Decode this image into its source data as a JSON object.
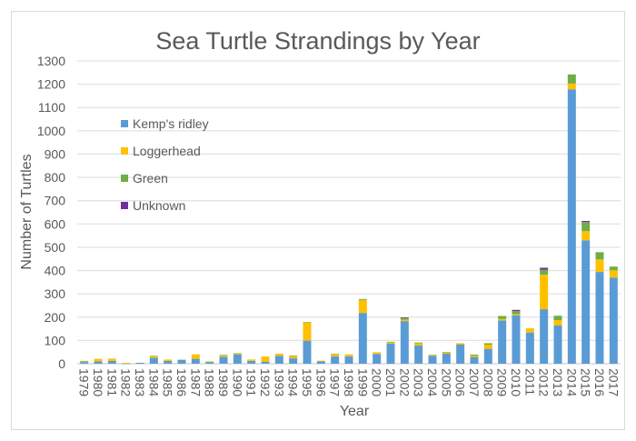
{
  "chart_data": {
    "type": "bar",
    "stacked": true,
    "title": "Sea Turtle Strandings by Year",
    "xlabel": "Year",
    "ylabel": "Number of Turtles",
    "ylim": [
      0,
      1300
    ],
    "yticks": [
      0,
      100,
      200,
      300,
      400,
      500,
      600,
      700,
      800,
      900,
      1000,
      1100,
      1200,
      1300
    ],
    "grid": true,
    "legend_position": "upper-left inside",
    "categories": [
      "1979",
      "1980",
      "1981",
      "1982",
      "1983",
      "1984",
      "1985",
      "1986",
      "1987",
      "1988",
      "1989",
      "1990",
      "1991",
      "1992",
      "1993",
      "1994",
      "1995",
      "1996",
      "1997",
      "1998",
      "1999",
      "2000",
      "2001",
      "2002",
      "2003",
      "2004",
      "2005",
      "2006",
      "2007",
      "2008",
      "2009",
      "2010",
      "2011",
      "2012",
      "2013",
      "2014",
      "2015",
      "2016",
      "2017"
    ],
    "series": [
      {
        "name": "Kemp's ridley",
        "color": "#5B9BD5",
        "values": [
          7,
          10,
          12,
          1,
          4,
          25,
          12,
          16,
          21,
          6,
          30,
          39,
          12,
          9,
          34,
          23,
          99,
          10,
          31,
          31,
          218,
          42,
          87,
          183,
          78,
          34,
          43,
          82,
          29,
          64,
          186,
          208,
          134,
          234,
          164,
          1178,
          530,
          394,
          370
        ]
      },
      {
        "name": "Loggerhead",
        "color": "#FFC000",
        "values": [
          4,
          11,
          10,
          3,
          0,
          7,
          6,
          0,
          19,
          2,
          6,
          4,
          6,
          22,
          9,
          10,
          78,
          3,
          10,
          9,
          56,
          7,
          6,
          6,
          10,
          2,
          6,
          6,
          6,
          18,
          6,
          5,
          18,
          148,
          23,
          25,
          39,
          54,
          31
        ]
      },
      {
        "name": "Green",
        "color": "#70AD47",
        "values": [
          1,
          0,
          0,
          0,
          0,
          2,
          0,
          1,
          0,
          1,
          2,
          2,
          0,
          0,
          0,
          2,
          2,
          0,
          1,
          0,
          4,
          0,
          1,
          8,
          3,
          2,
          1,
          0,
          4,
          6,
          13,
          13,
          0,
          21,
          19,
          39,
          39,
          31,
          16
        ]
      },
      {
        "name": "Unknown",
        "color": "#7030A0",
        "values": [
          0,
          0,
          0,
          0,
          0,
          0,
          0,
          0,
          0,
          0,
          0,
          0,
          0,
          0,
          0,
          0,
          0,
          0,
          0,
          0,
          0,
          0,
          0,
          2,
          0,
          0,
          0,
          0,
          0,
          0,
          0,
          5,
          0,
          9,
          0,
          0,
          5,
          0,
          0
        ]
      }
    ]
  }
}
